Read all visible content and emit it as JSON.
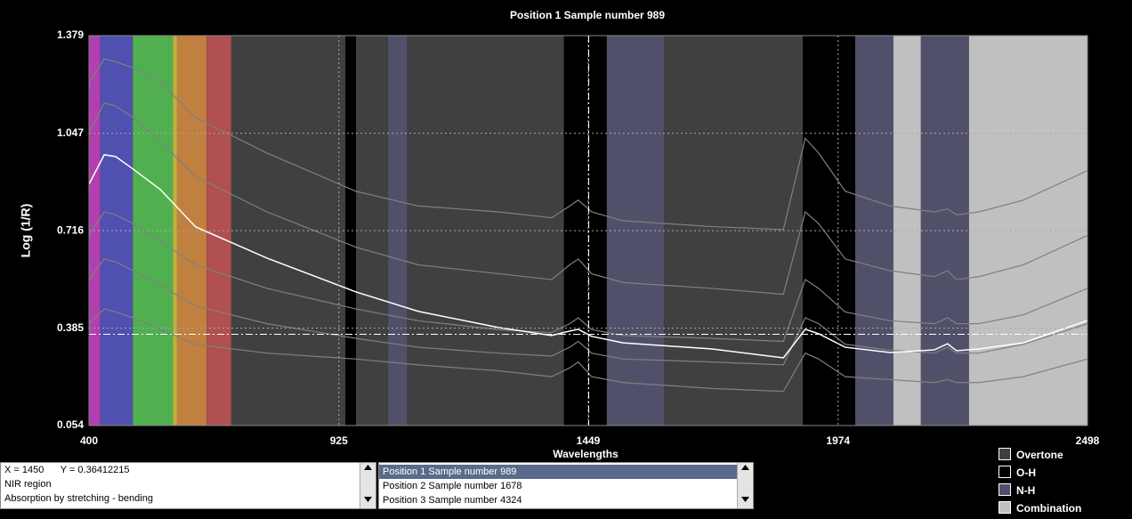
{
  "chart_data": {
    "type": "line",
    "title": "Position 1  Sample number 989",
    "x_label": "Wavelengths",
    "y_label": "Log (1/R)",
    "xlim": [
      400,
      2498
    ],
    "ylim": [
      0.054,
      1.379
    ],
    "xticks": [
      400,
      925,
      1449,
      1974,
      2498
    ],
    "yticks": [
      0.054,
      0.385,
      0.716,
      1.047,
      1.379
    ],
    "grid": true,
    "bands": [
      {
        "start": 400,
        "end": 424,
        "color": "#b040b0"
      },
      {
        "start": 424,
        "end": 492,
        "color": "#5050b0"
      },
      {
        "start": 492,
        "end": 576,
        "color": "#50b050"
      },
      {
        "start": 576,
        "end": 585,
        "color": "#c0b040"
      },
      {
        "start": 585,
        "end": 647,
        "color": "#c08040"
      },
      {
        "start": 647,
        "end": 699,
        "color": "#b05050"
      },
      {
        "start": 699,
        "end": 939,
        "color": "#404040"
      },
      {
        "start": 939,
        "end": 961,
        "color": "#000000"
      },
      {
        "start": 961,
        "end": 1028,
        "color": "#404040"
      },
      {
        "start": 1028,
        "end": 1069,
        "color": "#50506a"
      },
      {
        "start": 1069,
        "end": 1398,
        "color": "#404040"
      },
      {
        "start": 1398,
        "end": 1488,
        "color": "#000000"
      },
      {
        "start": 1488,
        "end": 1608,
        "color": "#50506a"
      },
      {
        "start": 1608,
        "end": 1900,
        "color": "#404040"
      },
      {
        "start": 1900,
        "end": 2010,
        "color": "#000000"
      },
      {
        "start": 2010,
        "end": 2090,
        "color": "#50506a"
      },
      {
        "start": 2090,
        "end": 2148,
        "color": "#c0c0c0"
      },
      {
        "start": 2148,
        "end": 2249,
        "color": "#50506a"
      },
      {
        "start": 2249,
        "end": 2498,
        "color": "#c0c0c0"
      }
    ],
    "x": [
      400,
      432,
      456,
      493,
      550,
      624,
      774,
      961,
      1092,
      1260,
      1372,
      1410,
      1428,
      1456,
      1522,
      1709,
      1859,
      1905,
      1933,
      1989,
      2083,
      2176,
      2204,
      2223,
      2270,
      2363,
      2498
    ],
    "series": [
      {
        "name": "Position 1  Sample number 989",
        "color": "#ffffff",
        "values": [
          0.874,
          0.974,
          0.968,
          0.925,
          0.856,
          0.729,
          0.623,
          0.508,
          0.442,
          0.387,
          0.36,
          0.375,
          0.381,
          0.357,
          0.335,
          0.314,
          0.284,
          0.381,
          0.366,
          0.32,
          0.302,
          0.311,
          0.332,
          0.308,
          0.314,
          0.335,
          0.411
        ]
      },
      {
        "name": "Position 2  Sample number 1678",
        "color": "#808080",
        "values": [
          1.05,
          1.15,
          1.14,
          1.1,
          1.02,
          0.9,
          0.78,
          0.66,
          0.6,
          0.57,
          0.55,
          0.6,
          0.62,
          0.57,
          0.54,
          0.52,
          0.5,
          0.78,
          0.74,
          0.62,
          0.58,
          0.56,
          0.58,
          0.55,
          0.56,
          0.6,
          0.7
        ]
      },
      {
        "name": "Position 3  Sample number 4324",
        "color": "#808080",
        "values": [
          0.4,
          0.45,
          0.44,
          0.42,
          0.38,
          0.33,
          0.3,
          0.28,
          0.26,
          0.24,
          0.22,
          0.25,
          0.27,
          0.22,
          0.2,
          0.18,
          0.17,
          0.3,
          0.28,
          0.22,
          0.21,
          0.2,
          0.21,
          0.2,
          0.2,
          0.22,
          0.28
        ]
      },
      {
        "color": "#808080",
        "values": [
          1.22,
          1.3,
          1.29,
          1.27,
          1.22,
          1.1,
          0.98,
          0.85,
          0.8,
          0.78,
          0.76,
          0.8,
          0.82,
          0.78,
          0.75,
          0.73,
          0.72,
          1.03,
          0.98,
          0.85,
          0.8,
          0.78,
          0.79,
          0.77,
          0.78,
          0.82,
          0.92
        ]
      },
      {
        "color": "#808080",
        "values": [
          0.7,
          0.78,
          0.77,
          0.74,
          0.68,
          0.6,
          0.52,
          0.45,
          0.41,
          0.38,
          0.37,
          0.4,
          0.42,
          0.38,
          0.36,
          0.35,
          0.34,
          0.55,
          0.52,
          0.44,
          0.41,
          0.4,
          0.42,
          0.4,
          0.4,
          0.43,
          0.52
        ]
      },
      {
        "color": "#808080",
        "values": [
          0.55,
          0.62,
          0.61,
          0.58,
          0.53,
          0.46,
          0.4,
          0.35,
          0.32,
          0.3,
          0.29,
          0.32,
          0.34,
          0.3,
          0.28,
          0.27,
          0.26,
          0.42,
          0.4,
          0.33,
          0.31,
          0.3,
          0.32,
          0.3,
          0.3,
          0.33,
          0.4
        ]
      }
    ],
    "cursor": {
      "x": 1450,
      "y": 0.36412215
    }
  },
  "info_panel": {
    "x_label": "X =",
    "y_label": "Y =",
    "lines": [
      "NIR region",
      "Absorption by stretching - bending"
    ]
  },
  "legend": [
    {
      "label": "Overtone",
      "color": "#404040"
    },
    {
      "label": "O-H",
      "color": "#000000"
    },
    {
      "label": "N-H",
      "color": "#50506a"
    },
    {
      "label": "Combination",
      "color": "#c0c0c0"
    }
  ]
}
